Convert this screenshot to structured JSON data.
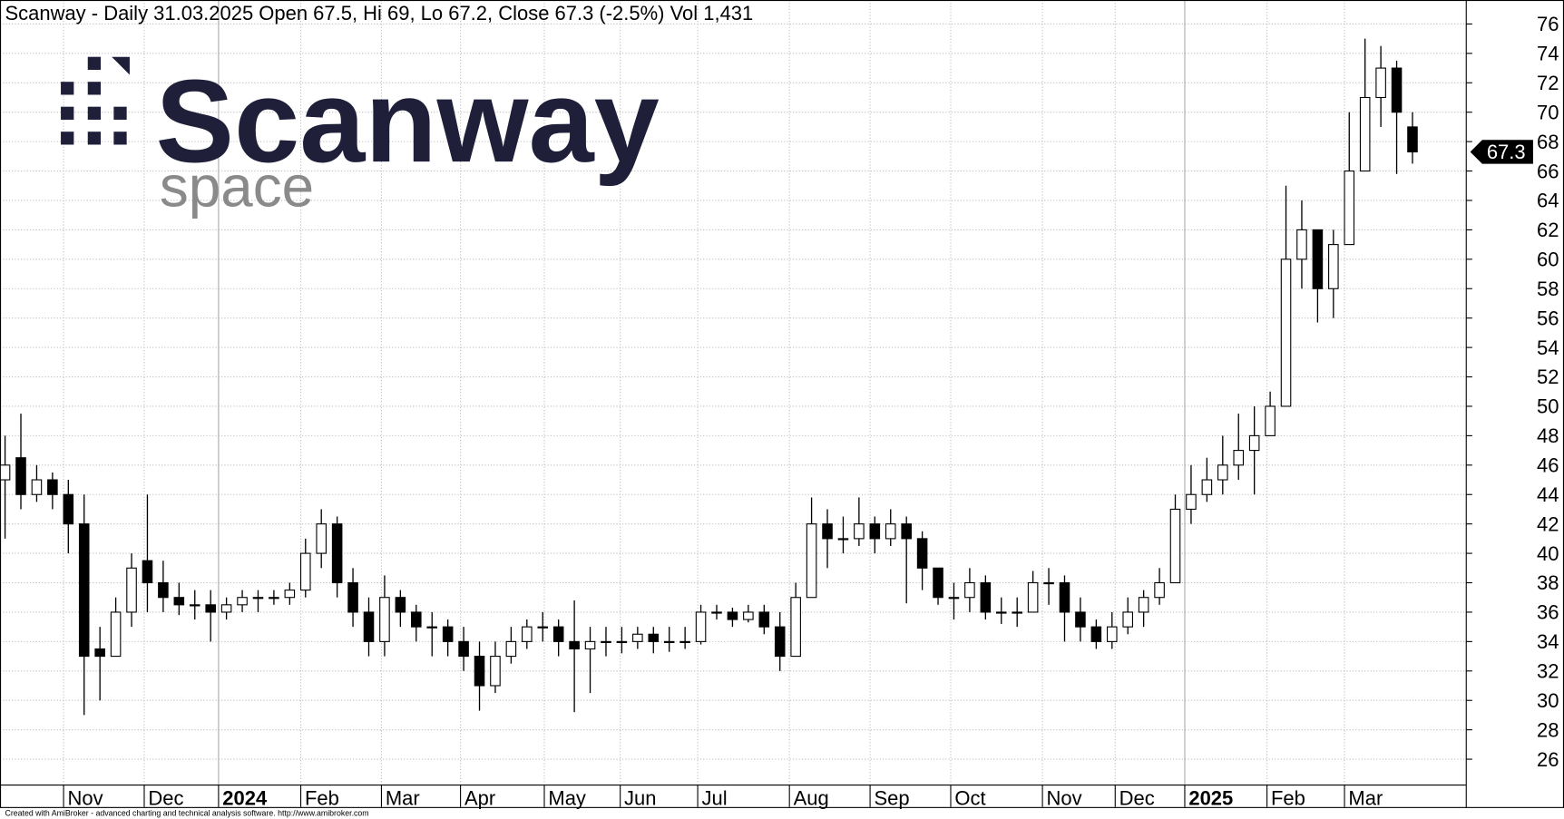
{
  "logo": {
    "name": "Scanway",
    "tagline": "space"
  },
  "chart_data": {
    "type": "candlestick",
    "title": "Scanway - Daily 31.03.2025 Open 67.5, Hi 69, Lo 67.2, Close 67.3 (-2.5%) Vol 1,431",
    "credit": "Created with AmiBroker - advanced charting and technical analysis software. http://www.amibroker.com",
    "xlim": [
      -0.32,
      92.4
    ],
    "xticks": [
      {
        "value": 3.7,
        "label": "Nov"
      },
      {
        "value": 8.8,
        "label": "Dec"
      },
      {
        "value": 13.5,
        "label": "2024"
      },
      {
        "value": 18.7,
        "label": "Feb"
      },
      {
        "value": 23.8,
        "label": "Mar"
      },
      {
        "value": 28.8,
        "label": "Apr"
      },
      {
        "value": 34.1,
        "label": "May"
      },
      {
        "value": 38.9,
        "label": "Jun"
      },
      {
        "value": 43.8,
        "label": "Jul"
      },
      {
        "value": 49.6,
        "label": "Aug"
      },
      {
        "value": 54.7,
        "label": "Sep"
      },
      {
        "value": 59.8,
        "label": "Oct"
      },
      {
        "value": 65.6,
        "label": "Nov"
      },
      {
        "value": 70.2,
        "label": "Dec"
      },
      {
        "value": 74.6,
        "label": "2025"
      },
      {
        "value": 79.8,
        "label": "Feb"
      },
      {
        "value": 84.7,
        "label": "Mar"
      }
    ],
    "ylim": [
      24.24,
      77.63
    ],
    "yticks": [
      26,
      28,
      30,
      32,
      34,
      36,
      38,
      40,
      42,
      44,
      46,
      48,
      50,
      52,
      54,
      56,
      58,
      60,
      62,
      64,
      66,
      68,
      70,
      72,
      74,
      76
    ],
    "grid": true,
    "up_color": "#ffffff",
    "down_color": "#000000",
    "open": [
      45,
      46.5,
      44,
      45,
      44,
      42,
      33.5,
      33,
      36,
      39.5,
      38,
      37,
      36.5,
      36.5,
      36,
      36.5,
      37,
      37,
      37,
      37.5,
      40,
      42,
      38,
      36,
      34,
      37,
      36,
      35,
      35,
      34,
      33,
      31,
      33,
      34,
      35,
      35,
      34,
      33.5,
      34,
      34,
      34,
      34.5,
      34,
      34,
      34,
      36,
      36,
      35.5,
      36,
      35,
      33,
      37,
      42,
      41,
      41,
      42,
      41,
      42,
      41,
      39,
      37,
      37,
      38,
      36,
      36,
      36,
      38,
      38,
      36,
      35,
      34,
      35,
      36,
      37,
      38,
      43,
      44,
      45,
      46,
      47,
      48,
      50,
      60,
      62,
      58,
      61,
      66,
      71,
      73,
      69
    ],
    "high": [
      48,
      49.5,
      46,
      45.5,
      45,
      44,
      35,
      37,
      40,
      44,
      39.5,
      38,
      37.5,
      37.5,
      37,
      37.5,
      37.5,
      37.5,
      38,
      41,
      43,
      42.5,
      39,
      37,
      38.5,
      37.5,
      36.5,
      36,
      35.5,
      35,
      34,
      34,
      35,
      35.5,
      36,
      35.5,
      36.8,
      35,
      35,
      35,
      35,
      35,
      35,
      35,
      36.5,
      36.5,
      36.3,
      36.5,
      36.5,
      36,
      38,
      43.8,
      43,
      42.5,
      43.8,
      42.5,
      43,
      42.5,
      41.5,
      39,
      38,
      39,
      38.5,
      37,
      37,
      38.8,
      39,
      38.5,
      37,
      35.5,
      36,
      37,
      37.5,
      39,
      44,
      46,
      46.5,
      48,
      49.5,
      50,
      51,
      65,
      64,
      62,
      62,
      70,
      75,
      74.5,
      73.5,
      70
    ],
    "low": [
      41,
      43,
      43.5,
      43,
      40,
      29,
      30,
      33,
      35,
      36,
      36,
      35.8,
      35.5,
      34,
      35.5,
      36,
      36,
      36.5,
      36.5,
      37,
      39,
      37,
      35,
      33,
      33,
      35,
      34,
      33,
      33,
      32,
      29.3,
      30.5,
      32.5,
      33.5,
      34,
      33,
      29.2,
      30.5,
      33,
      33.2,
      33.5,
      33.2,
      33.3,
      33.5,
      33.8,
      35.5,
      35,
      35.3,
      34.5,
      32,
      33,
      37,
      39,
      40,
      40.5,
      40,
      40.5,
      36.6,
      37.5,
      36.5,
      35.5,
      36,
      35.5,
      35.2,
      35,
      36,
      36.5,
      34,
      34,
      33.5,
      33.5,
      34.5,
      35,
      36.5,
      38,
      42,
      43.5,
      44,
      45,
      44,
      48,
      50,
      58,
      55.7,
      56,
      61,
      66,
      69,
      65.8,
      66.5
    ],
    "close": [
      46,
      44,
      45,
      44,
      42,
      33,
      33,
      36,
      39,
      38,
      37,
      36.5,
      36.5,
      36,
      36.5,
      37,
      37,
      37,
      37.5,
      40,
      42,
      38,
      36,
      34,
      37,
      36,
      35,
      35,
      34,
      33,
      31,
      33,
      34,
      35,
      35,
      34,
      33.5,
      34,
      34,
      34,
      34.5,
      34,
      34,
      34,
      36,
      36,
      35.5,
      36,
      35,
      33,
      37,
      42,
      41,
      41,
      42,
      41,
      42,
      41,
      39,
      37,
      37,
      38,
      36,
      36,
      36,
      38,
      38,
      36,
      35,
      34,
      35,
      36,
      37,
      38,
      43,
      44,
      45,
      46,
      47,
      48,
      50,
      60,
      62,
      58,
      61,
      66,
      71,
      73,
      70,
      67.3
    ]
  }
}
